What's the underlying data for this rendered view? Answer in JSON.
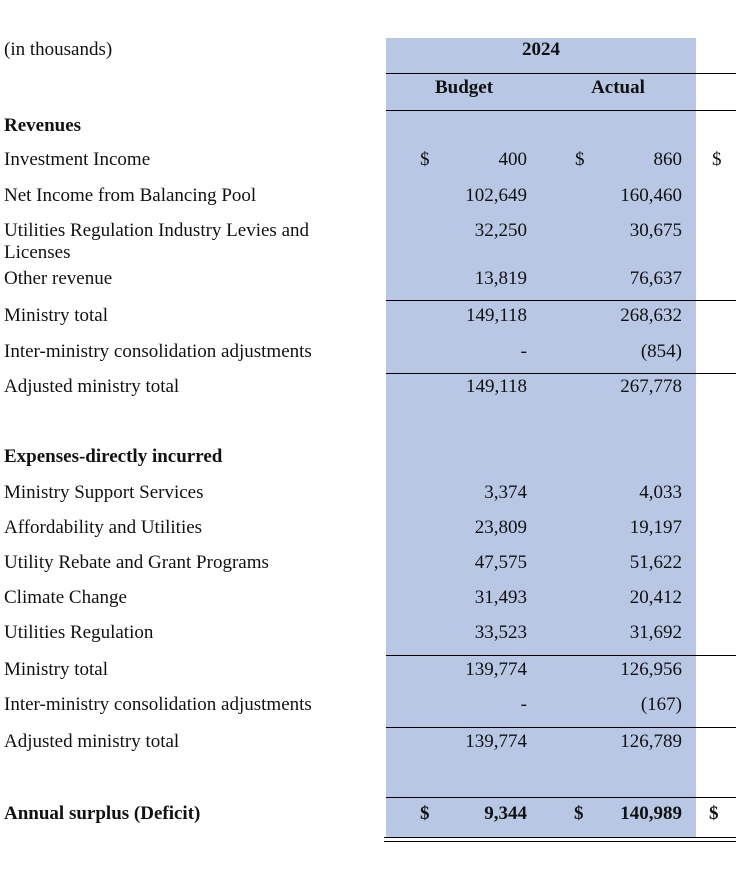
{
  "units_note": "(in thousands)",
  "year": "2024",
  "columns": {
    "budget": "Budget",
    "actual": "Actual"
  },
  "currency": "$",
  "revenues": {
    "heading": "Revenues",
    "rows": [
      {
        "label": "Investment Income",
        "budget": "400",
        "actual": "860"
      },
      {
        "label": "Net Income from Balancing Pool",
        "budget": "102,649",
        "actual": "160,460"
      },
      {
        "label": "Utilities Regulation Industry Levies and Licenses",
        "budget": "32,250",
        "actual": "30,675"
      },
      {
        "label": "Other revenue",
        "budget": "13,819",
        "actual": "76,637"
      }
    ],
    "ministry_total": {
      "label": "Ministry total",
      "budget": "149,118",
      "actual": "268,632"
    },
    "consolidation": {
      "label": "Inter-ministry consolidation adjustments",
      "budget": "-",
      "actual": "(854)"
    },
    "adjusted_total": {
      "label": "Adjusted ministry total",
      "budget": "149,118",
      "actual": "267,778"
    }
  },
  "expenses": {
    "heading": "Expenses-directly incurred",
    "rows": [
      {
        "label": "Ministry Support Services",
        "budget": "3,374",
        "actual": "4,033"
      },
      {
        "label": "Affordability and Utilities",
        "budget": "23,809",
        "actual": "19,197"
      },
      {
        "label": "Utility Rebate and Grant Programs",
        "budget": "47,575",
        "actual": "51,622"
      },
      {
        "label": "Climate Change",
        "budget": "31,493",
        "actual": "20,412"
      },
      {
        "label": "Utilities Regulation",
        "budget": "33,523",
        "actual": "31,692"
      }
    ],
    "ministry_total": {
      "label": "Ministry total",
      "budget": "139,774",
      "actual": "126,956"
    },
    "consolidation": {
      "label": "Inter-ministry consolidation adjustments",
      "budget": "-",
      "actual": "(167)"
    },
    "adjusted_total": {
      "label": "Adjusted ministry total",
      "budget": "139,774",
      "actual": "126,789"
    }
  },
  "surplus": {
    "label": "Annual surplus (Deficit)",
    "budget": "9,344",
    "actual": "140,989"
  }
}
